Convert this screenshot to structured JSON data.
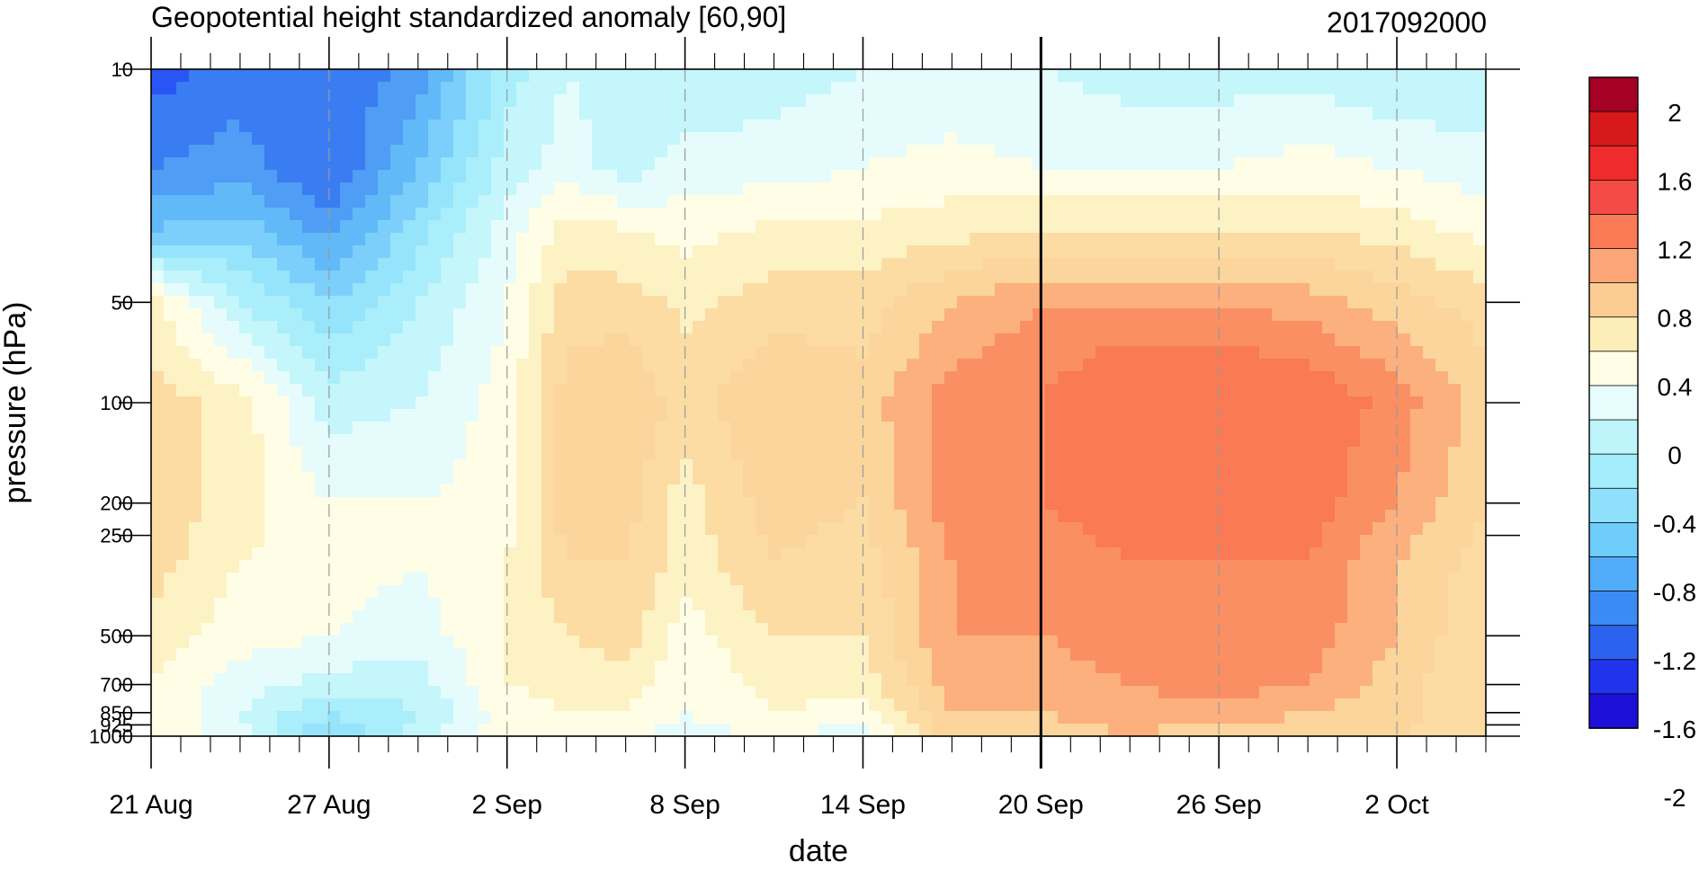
{
  "chart_data": {
    "type": "heatmap",
    "title": "Geopotential height standardized anomaly [60,90]",
    "run_label": "2017092000",
    "xlabel": "date",
    "ylabel": "pressure (hPa)",
    "x_ticks": [
      "21 Aug",
      "27 Aug",
      "2 Sep",
      "8 Sep",
      "14 Sep",
      "20 Sep",
      "26 Sep",
      "2 Oct"
    ],
    "y_ticks": [
      {
        "value": 10,
        "label": "10"
      },
      {
        "value": 50,
        "label": "50"
      },
      {
        "value": 100,
        "label": "100"
      },
      {
        "value": 200,
        "label": "200"
      },
      {
        "value": 250,
        "label": "250"
      },
      {
        "value": 500,
        "label": "500"
      },
      {
        "value": 700,
        "label": "700"
      },
      {
        "value": 850,
        "label": "850"
      },
      {
        "value": 925,
        "label": "925"
      },
      {
        "value": 1000,
        "label": "1000"
      }
    ],
    "y_scale": "log",
    "ylim": [
      1000,
      10
    ],
    "x_range_days": [
      0,
      45
    ],
    "vertical_marker_date": "20 Sep",
    "colorbar": {
      "labels": [
        "2",
        "1.6",
        "1.2",
        "0.8",
        "0.4",
        "0",
        "-0.4",
        "-0.8",
        "-1.2",
        "-1.6",
        "-2"
      ],
      "colors": [
        "#a50026",
        "#d7191c",
        "#ef2b2b",
        "#f44b46",
        "#fa7b55",
        "#fba578",
        "#fbcd93",
        "#fdeeb8",
        "#fffde6",
        "#e7fdfd",
        "#bdf5fb",
        "#a3ecfb",
        "#8fe1fb",
        "#6fcdfb",
        "#51acf9",
        "#3c8bf4",
        "#2c62f0",
        "#1f34ec",
        "#1e0fd7"
      ]
    },
    "levels": [
      -2,
      -1.6,
      -1.2,
      -0.8,
      -0.4,
      0,
      0.4,
      0.8,
      1.2,
      1.6,
      2
    ],
    "fill_colors": {
      "lt_-1.8": "#2a55f5",
      "-1.6": "#3a7cf2",
      "-1.4": "#4f9df5",
      "-1.2": "#62b9f8",
      "-1.0": "#7ccffb",
      "-0.8": "#96e4fb",
      "-0.6": "#abeefb",
      "-0.4": "#c4f6fb",
      "-0.2": "#e6fcfc",
      "0.0": "#fffde6",
      "0.2": "#fdf2c4",
      "0.4": "#fcdca3",
      "0.6": "#fbd59b",
      "0.8": "#fcb07e",
      "1.0": "#fa8f63",
      "1.2": "#f97a55"
    },
    "anomaly_grid": {
      "x_days": [
        0,
        3,
        6,
        9,
        12,
        14,
        16,
        18,
        21,
        24,
        27,
        30,
        33,
        36,
        39,
        42,
        45
      ],
      "pressure_hPa": [
        10,
        20,
        30,
        50,
        100,
        200,
        300,
        500,
        700,
        850,
        1000
      ],
      "values": [
        [
          -1.9,
          -1.7,
          -1.8,
          -1.5,
          -0.7,
          -0.4,
          -0.5,
          -0.6,
          -0.5,
          -0.4,
          -0.4,
          -0.4,
          -0.5,
          -0.5,
          -0.5,
          -0.6,
          -0.6
        ],
        [
          -1.6,
          -1.5,
          -1.8,
          -1.2,
          -0.5,
          -0.3,
          -0.5,
          -0.3,
          -0.3,
          -0.2,
          -0.1,
          -0.2,
          -0.2,
          -0.2,
          -0.1,
          -0.2,
          -0.3
        ],
        [
          -1.2,
          -1.1,
          -1.5,
          -0.9,
          -0.3,
          0.1,
          0.0,
          -0.1,
          0.05,
          0.05,
          0.1,
          0.2,
          0.2,
          0.2,
          0.2,
          0.1,
          -0.1
        ],
        [
          0.1,
          -0.6,
          -1.0,
          -0.6,
          -0.2,
          0.3,
          0.3,
          0.15,
          0.3,
          0.3,
          0.6,
          0.8,
          0.8,
          0.8,
          0.7,
          0.5,
          0.3
        ],
        [
          0.3,
          0.1,
          -0.5,
          -0.4,
          -0.1,
          0.5,
          0.6,
          0.3,
          0.6,
          0.5,
          0.9,
          1.0,
          1.3,
          1.3,
          1.2,
          0.9,
          0.5
        ],
        [
          0.35,
          0.1,
          -0.2,
          -0.2,
          -0.1,
          0.5,
          0.5,
          0.1,
          0.5,
          0.4,
          0.9,
          1.0,
          1.1,
          1.3,
          1.1,
          0.8,
          0.4
        ],
        [
          0.3,
          0.0,
          -0.1,
          -0.2,
          0.0,
          0.4,
          0.4,
          0.1,
          0.4,
          0.3,
          0.8,
          0.9,
          1.0,
          1.0,
          1.0,
          0.6,
          0.3
        ],
        [
          0.1,
          -0.1,
          -0.2,
          -0.3,
          0.0,
          0.2,
          0.3,
          -0.1,
          0.2,
          0.2,
          0.8,
          0.8,
          0.9,
          1.0,
          0.9,
          0.6,
          0.2
        ],
        [
          0.0,
          -0.3,
          -0.5,
          -0.5,
          0.0,
          0.1,
          0.1,
          -0.2,
          0.1,
          0.1,
          0.7,
          0.7,
          0.8,
          0.9,
          0.8,
          0.5,
          0.2
        ],
        [
          0.0,
          -0.4,
          -0.8,
          -0.6,
          -0.1,
          0.0,
          0.0,
          -0.2,
          0.0,
          -0.1,
          0.6,
          0.6,
          0.7,
          0.7,
          0.6,
          0.5,
          0.2
        ],
        [
          0.0,
          -0.3,
          -1.0,
          -0.5,
          0.0,
          -0.1,
          -0.2,
          -0.3,
          -0.2,
          -0.3,
          0.5,
          0.5,
          0.6,
          0.5,
          0.5,
          0.4,
          0.2
        ]
      ]
    }
  }
}
